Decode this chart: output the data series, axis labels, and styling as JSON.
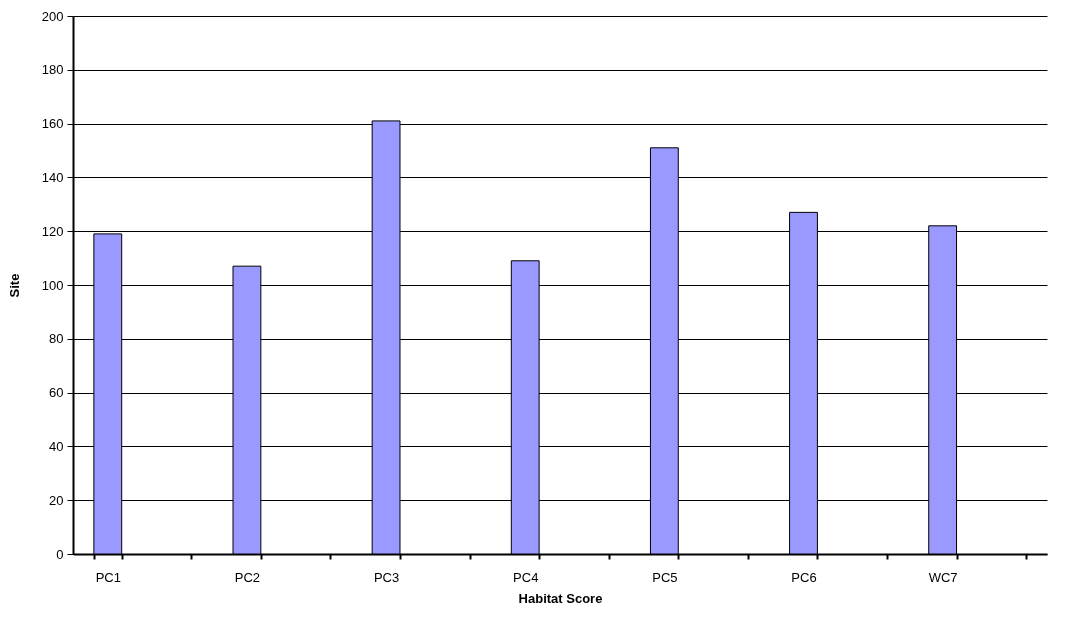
{
  "chart_data": {
    "type": "bar",
    "xlabel": "Habitat Score",
    "ylabel": "Site",
    "categories": [
      "PC1",
      null,
      "PC2",
      null,
      "PC3",
      null,
      "PC4",
      null,
      "PC5",
      null,
      "PC6",
      null,
      "WC7",
      null
    ],
    "values": [
      119,
      null,
      107,
      null,
      161,
      null,
      109,
      null,
      151,
      null,
      127,
      null,
      122,
      null
    ],
    "color": "#9999ff",
    "ylim": [
      0,
      200
    ],
    "yticks": [
      0,
      20,
      40,
      60,
      80,
      100,
      120,
      140,
      160,
      180,
      200
    ],
    "grid": "y"
  }
}
